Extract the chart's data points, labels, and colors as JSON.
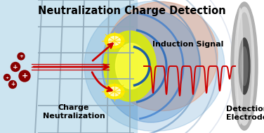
{
  "title": "Neutralization Charge Detection",
  "label_charge_neutralization": "Charge\nNeutralization",
  "label_induction_signal": "Induction Signal",
  "label_detection_electrode": "Detection\nElectrode",
  "title_fontsize": 10.5,
  "label_fontsize": 8,
  "signal_color": "#cc0000",
  "grid_line_color": "#90a8b8",
  "ion_dark": "#880000",
  "electrode_gray": "#a0a0a0",
  "electrode_dark": "#606060"
}
